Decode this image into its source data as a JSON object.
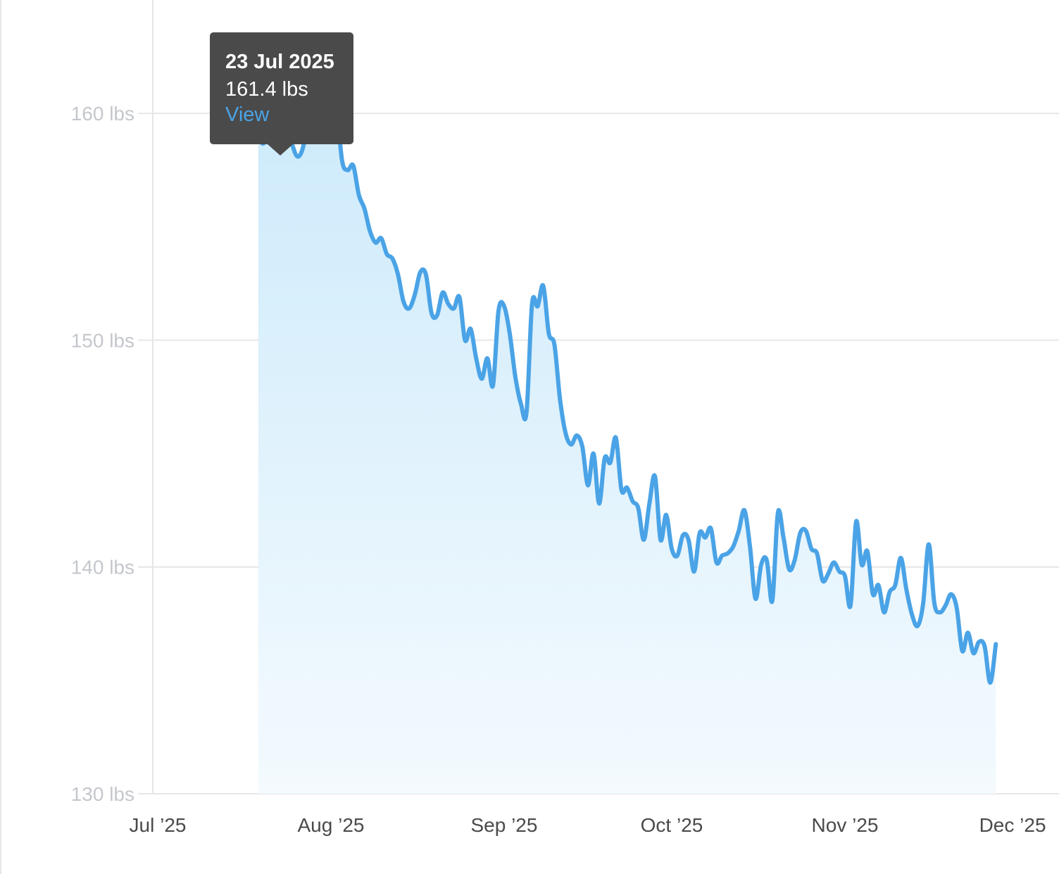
{
  "chart_data": {
    "type": "area",
    "title": "",
    "xlabel": "",
    "ylabel": "",
    "ylim": [
      130,
      165
    ],
    "grid": true,
    "y_ticks": [
      {
        "value": 160,
        "label": "160 lbs"
      },
      {
        "value": 150,
        "label": "150 lbs"
      },
      {
        "value": 140,
        "label": "140 lbs"
      },
      {
        "value": 130,
        "label": "130 lbs"
      }
    ],
    "x_ticks": [
      {
        "date": "2025-07-01",
        "label": "Jul ’25"
      },
      {
        "date": "2025-08-01",
        "label": "Aug ’25"
      },
      {
        "date": "2025-09-01",
        "label": "Sep ’25"
      },
      {
        "date": "2025-10-01",
        "label": "Oct ’25"
      },
      {
        "date": "2025-11-01",
        "label": "Nov ’25"
      },
      {
        "date": "2025-12-01",
        "label": "Dec ’25"
      }
    ],
    "line_color": "#4aa3e6",
    "fill_color": "#d0ebfb",
    "series": [
      {
        "unit": "lbs",
        "points": [
          [
            "2025-07-19",
            159.0
          ],
          [
            "2025-07-20",
            158.7
          ],
          [
            "2025-07-21",
            159.9
          ],
          [
            "2025-07-22",
            159.7
          ],
          [
            "2025-07-23",
            161.4
          ],
          [
            "2025-07-24",
            159.8
          ],
          [
            "2025-07-25",
            158.7
          ],
          [
            "2025-07-26",
            158.1
          ],
          [
            "2025-07-27",
            158.5
          ],
          [
            "2025-07-28",
            159.9
          ],
          [
            "2025-07-29",
            160.4
          ],
          [
            "2025-07-30",
            161.4
          ],
          [
            "2025-07-31",
            160.8
          ],
          [
            "2025-08-01",
            159.9
          ],
          [
            "2025-08-02",
            160.2
          ],
          [
            "2025-08-03",
            157.9
          ],
          [
            "2025-08-04",
            157.5
          ],
          [
            "2025-08-05",
            157.7
          ],
          [
            "2025-08-06",
            156.4
          ],
          [
            "2025-08-07",
            155.8
          ],
          [
            "2025-08-08",
            154.8
          ],
          [
            "2025-08-09",
            154.3
          ],
          [
            "2025-08-10",
            154.5
          ],
          [
            "2025-08-11",
            153.8
          ],
          [
            "2025-08-12",
            153.6
          ],
          [
            "2025-08-13",
            152.9
          ],
          [
            "2025-08-14",
            151.7
          ],
          [
            "2025-08-15",
            151.4
          ],
          [
            "2025-08-16",
            152.0
          ],
          [
            "2025-08-17",
            153.0
          ],
          [
            "2025-08-18",
            152.9
          ],
          [
            "2025-08-19",
            151.2
          ],
          [
            "2025-08-20",
            151.1
          ],
          [
            "2025-08-21",
            152.1
          ],
          [
            "2025-08-22",
            151.6
          ],
          [
            "2025-08-23",
            151.4
          ],
          [
            "2025-08-24",
            151.9
          ],
          [
            "2025-08-25",
            150.0
          ],
          [
            "2025-08-26",
            150.5
          ],
          [
            "2025-08-27",
            149.2
          ],
          [
            "2025-08-28",
            148.3
          ],
          [
            "2025-08-29",
            149.2
          ],
          [
            "2025-08-30",
            148.0
          ],
          [
            "2025-08-31",
            151.3
          ],
          [
            "2025-09-01",
            151.5
          ],
          [
            "2025-09-02",
            150.3
          ],
          [
            "2025-09-03",
            148.4
          ],
          [
            "2025-09-04",
            147.2
          ],
          [
            "2025-09-05",
            146.8
          ],
          [
            "2025-09-06",
            151.6
          ],
          [
            "2025-09-07",
            151.5
          ],
          [
            "2025-09-08",
            152.4
          ],
          [
            "2025-09-09",
            150.3
          ],
          [
            "2025-09-10",
            149.8
          ],
          [
            "2025-09-11",
            147.4
          ],
          [
            "2025-09-12",
            145.9
          ],
          [
            "2025-09-13",
            145.4
          ],
          [
            "2025-09-14",
            145.8
          ],
          [
            "2025-09-15",
            145.3
          ],
          [
            "2025-09-16",
            143.6
          ],
          [
            "2025-09-17",
            145.0
          ],
          [
            "2025-09-18",
            142.8
          ],
          [
            "2025-09-19",
            144.8
          ],
          [
            "2025-09-20",
            144.6
          ],
          [
            "2025-09-21",
            145.7
          ],
          [
            "2025-09-22",
            143.4
          ],
          [
            "2025-09-23",
            143.5
          ],
          [
            "2025-09-24",
            142.9
          ],
          [
            "2025-09-25",
            142.6
          ],
          [
            "2025-09-26",
            141.2
          ],
          [
            "2025-09-27",
            142.8
          ],
          [
            "2025-09-28",
            144.0
          ],
          [
            "2025-09-29",
            141.2
          ],
          [
            "2025-09-30",
            142.3
          ],
          [
            "2025-10-01",
            140.8
          ],
          [
            "2025-10-02",
            140.5
          ],
          [
            "2025-10-03",
            141.4
          ],
          [
            "2025-10-04",
            141.2
          ],
          [
            "2025-10-05",
            139.8
          ],
          [
            "2025-10-06",
            141.5
          ],
          [
            "2025-10-07",
            141.3
          ],
          [
            "2025-10-08",
            141.7
          ],
          [
            "2025-10-09",
            140.2
          ],
          [
            "2025-10-10",
            140.5
          ],
          [
            "2025-10-11",
            140.6
          ],
          [
            "2025-10-12",
            140.9
          ],
          [
            "2025-10-13",
            141.6
          ],
          [
            "2025-10-14",
            142.5
          ],
          [
            "2025-10-15",
            140.9
          ],
          [
            "2025-10-16",
            138.6
          ],
          [
            "2025-10-17",
            140.1
          ],
          [
            "2025-10-18",
            140.3
          ],
          [
            "2025-10-19",
            138.5
          ],
          [
            "2025-10-20",
            142.4
          ],
          [
            "2025-10-21",
            141.3
          ],
          [
            "2025-10-22",
            139.9
          ],
          [
            "2025-10-23",
            140.3
          ],
          [
            "2025-10-24",
            141.5
          ],
          [
            "2025-10-25",
            141.6
          ],
          [
            "2025-10-26",
            140.8
          ],
          [
            "2025-10-27",
            140.6
          ],
          [
            "2025-10-28",
            139.4
          ],
          [
            "2025-10-29",
            139.7
          ],
          [
            "2025-10-30",
            140.2
          ],
          [
            "2025-10-31",
            139.8
          ],
          [
            "2025-11-01",
            139.6
          ],
          [
            "2025-11-02",
            138.3
          ],
          [
            "2025-11-03",
            142.0
          ],
          [
            "2025-11-04",
            140.1
          ],
          [
            "2025-11-05",
            140.7
          ],
          [
            "2025-11-06",
            138.8
          ],
          [
            "2025-11-07",
            139.2
          ],
          [
            "2025-11-08",
            138.0
          ],
          [
            "2025-11-09",
            138.9
          ],
          [
            "2025-11-10",
            139.2
          ],
          [
            "2025-11-11",
            140.4
          ],
          [
            "2025-11-12",
            139.0
          ],
          [
            "2025-11-13",
            137.9
          ],
          [
            "2025-11-14",
            137.4
          ],
          [
            "2025-11-15",
            138.4
          ],
          [
            "2025-11-16",
            141.0
          ],
          [
            "2025-11-17",
            138.4
          ],
          [
            "2025-11-18",
            138.0
          ],
          [
            "2025-11-19",
            138.3
          ],
          [
            "2025-11-20",
            138.8
          ],
          [
            "2025-11-21",
            138.2
          ],
          [
            "2025-11-22",
            136.3
          ],
          [
            "2025-11-23",
            137.1
          ],
          [
            "2025-11-24",
            136.2
          ],
          [
            "2025-11-25",
            136.7
          ],
          [
            "2025-11-26",
            136.5
          ],
          [
            "2025-11-27",
            134.9
          ],
          [
            "2025-11-28",
            136.6
          ]
        ]
      }
    ]
  },
  "tooltip": {
    "date": "23 Jul 2025",
    "value": "161.4 lbs",
    "link": "View"
  }
}
